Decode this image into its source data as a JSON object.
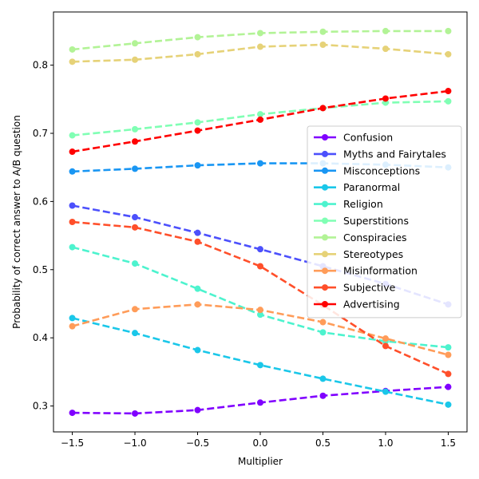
{
  "chart_data": {
    "type": "line",
    "title": "",
    "xlabel": "Multiplier",
    "ylabel": "Probability of correct answer to A/B question",
    "x": [
      -1.5,
      -1.0,
      -0.5,
      0.0,
      0.5,
      1.0,
      1.5
    ],
    "x_ticks": [
      "−1.5",
      "−1.0",
      "−0.5",
      "0.0",
      "0.5",
      "1.0",
      "1.5"
    ],
    "y_ticks": [
      "0.3",
      "0.4",
      "0.5",
      "0.6",
      "0.7",
      "0.8"
    ],
    "y_tick_values": [
      0.3,
      0.4,
      0.5,
      0.6,
      0.7,
      0.8
    ],
    "xlim": [
      -1.65,
      1.65
    ],
    "ylim": [
      0.262,
      0.878
    ],
    "grid": false,
    "legend_position": "center-right",
    "series": [
      {
        "name": "Confusion",
        "color": "#8000ff",
        "values": [
          0.29,
          0.289,
          0.294,
          0.305,
          0.315,
          0.322,
          0.328
        ]
      },
      {
        "name": "Myths and Fairytales",
        "color": "#4c50fc",
        "values": [
          0.594,
          0.577,
          0.554,
          0.53,
          0.505,
          0.479,
          0.449
        ]
      },
      {
        "name": "Misconceptions",
        "color": "#1996f3",
        "values": [
          0.644,
          0.648,
          0.653,
          0.656,
          0.656,
          0.654,
          0.65
        ]
      },
      {
        "name": "Paranormal",
        "color": "#1ac7e9",
        "values": [
          0.429,
          0.407,
          0.382,
          0.36,
          0.34,
          0.321,
          0.302
        ]
      },
      {
        "name": "Religion",
        "color": "#4df3ce",
        "values": [
          0.533,
          0.509,
          0.472,
          0.434,
          0.408,
          0.395,
          0.386
        ]
      },
      {
        "name": "Superstitions",
        "color": "#80ffb4",
        "values": [
          0.697,
          0.706,
          0.716,
          0.728,
          0.737,
          0.745,
          0.747
        ]
      },
      {
        "name": "Conspiracies",
        "color": "#b2f396",
        "values": [
          0.823,
          0.832,
          0.841,
          0.847,
          0.849,
          0.85,
          0.85
        ]
      },
      {
        "name": "Stereotypes",
        "color": "#e6d278",
        "values": [
          0.805,
          0.808,
          0.816,
          0.827,
          0.83,
          0.824,
          0.816
        ]
      },
      {
        "name": "Misinformation",
        "color": "#ff9c59",
        "values": [
          0.417,
          0.442,
          0.449,
          0.441,
          0.423,
          0.399,
          0.375
        ]
      },
      {
        "name": "Subjective",
        "color": "#ff4f2a",
        "values": [
          0.57,
          0.562,
          0.541,
          0.505,
          0.448,
          0.388,
          0.347
        ]
      },
      {
        "name": "Advertising",
        "color": "#ff0000",
        "values": [
          0.673,
          0.688,
          0.704,
          0.72,
          0.737,
          0.751,
          0.762
        ]
      }
    ]
  }
}
